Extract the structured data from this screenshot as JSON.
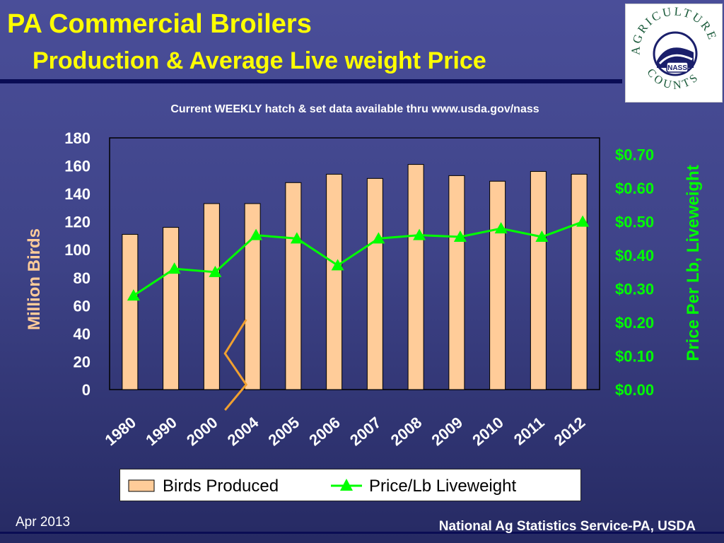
{
  "header": {
    "title": "PA Commercial Broilers",
    "subtitle": "Production & Average Live weight Price"
  },
  "note": "Current WEEKLY hatch & set data available thru www.usda.gov/nass",
  "logo": {
    "arc_text": "AGRICULTURE",
    "bottom_text": "COUNTS",
    "badge": "NASS"
  },
  "footer": {
    "date": "Apr 2013",
    "agency": "National Ag Statistics Service-PA, USDA"
  },
  "colors": {
    "title": "#ffff00",
    "bars": "#ffcc99",
    "line": "#00ff00",
    "left_axis_label": "#ffcc99",
    "right_axis_label": "#00ff00",
    "break_mark": "#f0a030"
  },
  "chart_data": {
    "type": "bar",
    "categories": [
      "1980",
      "1990",
      "2000",
      "2004",
      "2005",
      "2006",
      "2007",
      "2008",
      "2009",
      "2010",
      "2011",
      "2012"
    ],
    "series": [
      {
        "name": "Birds Produced",
        "type": "bar",
        "axis": "left",
        "values": [
          111,
          116,
          133,
          133,
          148,
          154,
          151,
          161,
          153,
          149,
          156,
          154
        ]
      },
      {
        "name": "Price/Lb Liveweight",
        "type": "line",
        "axis": "right",
        "marker": "triangle",
        "values": [
          0.28,
          0.36,
          0.35,
          0.46,
          0.45,
          0.37,
          0.45,
          0.46,
          0.455,
          0.48,
          0.455,
          0.5
        ]
      }
    ],
    "ylabel": "Million Birds",
    "ylim": [
      0,
      180
    ],
    "y_ticks": [
      "0",
      "20",
      "40",
      "60",
      "80",
      "100",
      "120",
      "140",
      "160",
      "180"
    ],
    "y2label": "Price Per Lb, Liveweight",
    "y2lim": [
      0,
      0.75
    ],
    "y2_ticks": [
      "$0.00",
      "$0.10",
      "$0.20",
      "$0.30",
      "$0.40",
      "$0.50",
      "$0.60",
      "$0.70"
    ],
    "axis_break_after": "2000",
    "legend": "bottom",
    "grid": false
  }
}
